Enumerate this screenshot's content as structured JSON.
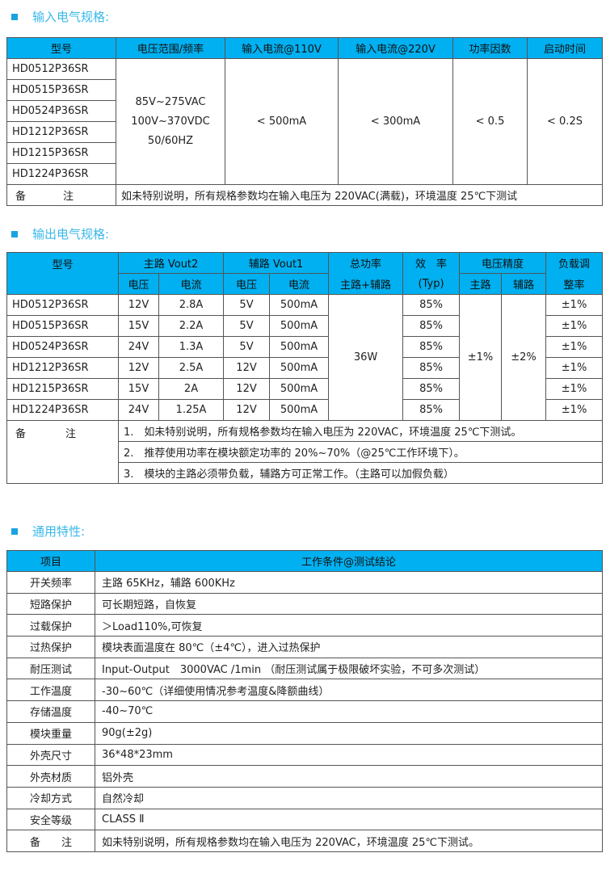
{
  "colors": {
    "header_bg": "#00b0f0",
    "title": "#3ab8e8"
  },
  "input": {
    "title": "输入电气规格:",
    "headers": [
      "型号",
      "电压范围/频率",
      "输入电流@110V",
      "输入电流@220V",
      "功率因数",
      "启动时间"
    ],
    "models": [
      "HD0512P36SR",
      "HD0515P36SR",
      "HD0524P36SR",
      "HD1212P36SR",
      "HD1215P36SR",
      "HD1224P36SR"
    ],
    "voltage_lines": [
      "85V~275VAC",
      "100V~370VDC",
      "50/60HZ"
    ],
    "current_110": "< 500mA",
    "current_220": "< 300mA",
    "pf": "< 0.5",
    "startup": "< 0.2S",
    "note_label": "备注",
    "note": "如未特别说明，所有规格参数均在输入电压为 220VAC(满载)，环境温度 25℃下测试"
  },
  "output": {
    "title": "输出电气规格:",
    "headers": {
      "model": "型号",
      "main": "主路 Vout2",
      "aux": "辅路 Vout1",
      "power": "总功率",
      "power_sub": "主路+辅路",
      "eff": "效　率",
      "eff_sub": "(Typ)",
      "accuracy": "电压精度",
      "acc_main": "主路",
      "acc_aux": "辅路",
      "reg": "负载调",
      "reg_sub": "整率",
      "voltage": "电压",
      "current": "电流"
    },
    "rows": [
      {
        "model": "HD0512P36SR",
        "mv": "12V",
        "mi": "2.8A",
        "av": "5V",
        "ai": "500mA",
        "eff": "85%",
        "reg": "±1%"
      },
      {
        "model": "HD0515P36SR",
        "mv": "15V",
        "mi": "2.2A",
        "av": "5V",
        "ai": "500mA",
        "eff": "85%",
        "reg": "±1%"
      },
      {
        "model": "HD0524P36SR",
        "mv": "24V",
        "mi": "1.3A",
        "av": "5V",
        "ai": "500mA",
        "eff": "85%",
        "reg": "±1%"
      },
      {
        "model": "HD1212P36SR",
        "mv": "12V",
        "mi": "2.5A",
        "av": "12V",
        "ai": "500mA",
        "eff": "85%",
        "reg": "±1%"
      },
      {
        "model": "HD1215P36SR",
        "mv": "15V",
        "mi": "2A",
        "av": "12V",
        "ai": "500mA",
        "eff": "85%",
        "reg": "±1%"
      },
      {
        "model": "HD1224P36SR",
        "mv": "24V",
        "mi": "1.25A",
        "av": "12V",
        "ai": "500mA",
        "eff": "85%",
        "reg": "±1%"
      }
    ],
    "total_power": "36W",
    "acc_main": "±1%",
    "acc_aux": "±2%",
    "note_label": "备注",
    "notes": [
      "1.　如未特别说明，所有规格参数均在输入电压为 220VAC，环境温度 25℃下测试。",
      "2.　推荐使用功率在模块额定功率的 20%~70%（@25℃工作环境下）。",
      "3.　模块的主路必须带负载，辅路方可正常工作。（主路可以加假负载）"
    ]
  },
  "general": {
    "title": "通用特性:",
    "headers": [
      "项目",
      "工作条件@测试结论"
    ],
    "rows": [
      [
        "开关频率",
        "主路 65KHz，辅路 600KHz"
      ],
      [
        "短路保护",
        "可长期短路，自恢复"
      ],
      [
        "过载保护",
        "＞Load110%,可恢复"
      ],
      [
        "过热保护",
        "模块表面温度在 80℃（±4℃），进入过热保护"
      ],
      [
        "耐压测试",
        "Input-Output　3000VAC /1min （耐压测试属于极限破坏实验，不可多次测试）"
      ],
      [
        "工作温度",
        "-30~60℃（详细使用情况参考温度&降额曲线）"
      ],
      [
        "存储温度",
        "-40~70℃"
      ],
      [
        "模块重量",
        "90g(±2g)"
      ],
      [
        "外壳尺寸",
        "36*48*23mm"
      ],
      [
        "外壳材质",
        "铝外壳"
      ],
      [
        "冷却方式",
        "自然冷却"
      ],
      [
        "安全等级",
        "CLASS Ⅱ"
      ],
      [
        "备　　注",
        "如未特别说明，所有规格参数均在输入电压为 220VAC，环境温度 25℃下测试。"
      ]
    ]
  }
}
